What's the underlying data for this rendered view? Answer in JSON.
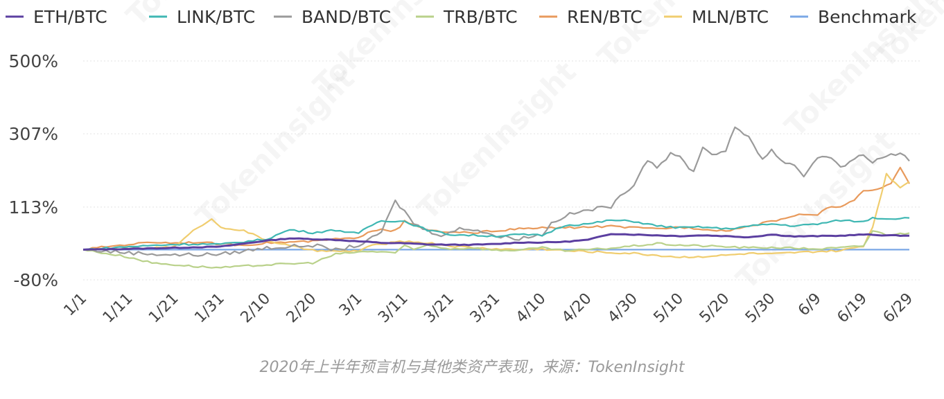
{
  "caption": "2020年上半年预言机与其他类资产表现，来源：TokenInsight",
  "watermark": "TokenInsight",
  "chart_data": {
    "type": "line",
    "title": "",
    "xlabel": "",
    "ylabel": "",
    "ylim": [
      -80,
      500
    ],
    "yticks": [
      {
        "value": 500,
        "label": "500%"
      },
      {
        "value": 307,
        "label": "307%"
      },
      {
        "value": 113,
        "label": "113%"
      },
      {
        "value": -80,
        "label": "-80%"
      }
    ],
    "xticks": [
      "1/1",
      "1/11",
      "1/21",
      "1/31",
      "2/10",
      "2/20",
      "3/1",
      "3/11",
      "3/21",
      "3/31",
      "4/10",
      "4/20",
      "4/30",
      "5/10",
      "5/20",
      "5/30",
      "6/9",
      "6/19",
      "6/29"
    ],
    "grid": true,
    "legend_position": "top",
    "series": [
      {
        "name": "ETH/BTC",
        "color": "#5b3fa0",
        "keys": [
          [
            0,
            0
          ],
          [
            10,
            2
          ],
          [
            20,
            5
          ],
          [
            30,
            8
          ],
          [
            40,
            24
          ],
          [
            45,
            30
          ],
          [
            50,
            28
          ],
          [
            55,
            26
          ],
          [
            60,
            22
          ],
          [
            65,
            18
          ],
          [
            70,
            17
          ],
          [
            75,
            14
          ],
          [
            80,
            13
          ],
          [
            85,
            13
          ],
          [
            90,
            15
          ],
          [
            95,
            19
          ],
          [
            100,
            19
          ],
          [
            105,
            21
          ],
          [
            110,
            26
          ],
          [
            115,
            42
          ],
          [
            120,
            40
          ],
          [
            125,
            38
          ],
          [
            130,
            36
          ],
          [
            135,
            38
          ],
          [
            140,
            36
          ],
          [
            145,
            33
          ],
          [
            150,
            40
          ],
          [
            155,
            35
          ],
          [
            160,
            36
          ],
          [
            165,
            37
          ],
          [
            170,
            40
          ],
          [
            175,
            38
          ],
          [
            180,
            37
          ]
        ]
      },
      {
        "name": "LINK/BTC",
        "color": "#3fb7b3",
        "keys": [
          [
            0,
            0
          ],
          [
            10,
            8
          ],
          [
            20,
            14
          ],
          [
            25,
            15
          ],
          [
            30,
            14
          ],
          [
            40,
            28
          ],
          [
            45,
            53
          ],
          [
            48,
            48
          ],
          [
            50,
            45
          ],
          [
            55,
            52
          ],
          [
            60,
            42
          ],
          [
            62,
            60
          ],
          [
            65,
            77
          ],
          [
            70,
            75
          ],
          [
            75,
            52
          ],
          [
            80,
            40
          ],
          [
            85,
            38
          ],
          [
            90,
            36
          ],
          [
            95,
            40
          ],
          [
            100,
            38
          ],
          [
            105,
            65
          ],
          [
            110,
            68
          ],
          [
            115,
            78
          ],
          [
            120,
            75
          ],
          [
            125,
            63
          ],
          [
            130,
            58
          ],
          [
            135,
            60
          ],
          [
            140,
            55
          ],
          [
            145,
            62
          ],
          [
            150,
            68
          ],
          [
            155,
            63
          ],
          [
            160,
            68
          ],
          [
            165,
            78
          ],
          [
            170,
            74
          ],
          [
            172,
            85
          ],
          [
            175,
            82
          ],
          [
            180,
            84
          ]
        ]
      },
      {
        "name": "BAND/BTC",
        "color": "#9a9a9a",
        "keys": [
          [
            0,
            0
          ],
          [
            10,
            -8
          ],
          [
            20,
            -14
          ],
          [
            30,
            -12
          ],
          [
            40,
            5
          ],
          [
            45,
            8
          ],
          [
            50,
            12
          ],
          [
            55,
            -1
          ],
          [
            60,
            12
          ],
          [
            62,
            22
          ],
          [
            65,
            48
          ],
          [
            68,
            128
          ],
          [
            70,
            102
          ],
          [
            72,
            70
          ],
          [
            75,
            50
          ],
          [
            78,
            40
          ],
          [
            80,
            45
          ],
          [
            82,
            55
          ],
          [
            85,
            55
          ],
          [
            88,
            45
          ],
          [
            90,
            35
          ],
          [
            95,
            30
          ],
          [
            100,
            40
          ],
          [
            102,
            70
          ],
          [
            105,
            90
          ],
          [
            110,
            105
          ],
          [
            115,
            115
          ],
          [
            120,
            175
          ],
          [
            123,
            240
          ],
          [
            125,
            220
          ],
          [
            128,
            252
          ],
          [
            130,
            245
          ],
          [
            133,
            205
          ],
          [
            135,
            275
          ],
          [
            137,
            250
          ],
          [
            140,
            265
          ],
          [
            142,
            320
          ],
          [
            145,
            300
          ],
          [
            148,
            240
          ],
          [
            150,
            265
          ],
          [
            152,
            235
          ],
          [
            155,
            225
          ],
          [
            157,
            195
          ],
          [
            160,
            245
          ],
          [
            162,
            250
          ],
          [
            165,
            220
          ],
          [
            168,
            235
          ],
          [
            170,
            255
          ],
          [
            172,
            230
          ],
          [
            175,
            250
          ],
          [
            178,
            255
          ],
          [
            180,
            235
          ]
        ]
      },
      {
        "name": "TRB/BTC",
        "color": "#b9d18a",
        "keys": [
          [
            0,
            0
          ],
          [
            10,
            -20
          ],
          [
            15,
            -35
          ],
          [
            20,
            -40
          ],
          [
            25,
            -45
          ],
          [
            30,
            -48
          ],
          [
            40,
            -40
          ],
          [
            50,
            -35
          ],
          [
            55,
            -12
          ],
          [
            60,
            -6
          ],
          [
            65,
            -5
          ],
          [
            68,
            -8
          ],
          [
            70,
            10
          ],
          [
            72,
            0
          ],
          [
            75,
            12
          ],
          [
            80,
            2
          ],
          [
            85,
            5
          ],
          [
            90,
            -2
          ],
          [
            95,
            -1
          ],
          [
            100,
            5
          ],
          [
            105,
            -3
          ],
          [
            110,
            0
          ],
          [
            115,
            4
          ],
          [
            120,
            10
          ],
          [
            125,
            16
          ],
          [
            130,
            12
          ],
          [
            135,
            10
          ],
          [
            140,
            8
          ],
          [
            145,
            5
          ],
          [
            150,
            6
          ],
          [
            155,
            4
          ],
          [
            160,
            2
          ],
          [
            165,
            5
          ],
          [
            170,
            10
          ],
          [
            172,
            50
          ],
          [
            175,
            40
          ],
          [
            178,
            42
          ],
          [
            180,
            44
          ]
        ]
      },
      {
        "name": "REN/BTC",
        "color": "#e89a5c",
        "keys": [
          [
            0,
            0
          ],
          [
            5,
            8
          ],
          [
            10,
            14
          ],
          [
            15,
            20
          ],
          [
            20,
            18
          ],
          [
            25,
            20
          ],
          [
            30,
            15
          ],
          [
            35,
            12
          ],
          [
            40,
            18
          ],
          [
            45,
            20
          ],
          [
            50,
            22
          ],
          [
            55,
            28
          ],
          [
            60,
            30
          ],
          [
            62,
            48
          ],
          [
            65,
            55
          ],
          [
            67,
            50
          ],
          [
            69,
            60
          ],
          [
            70,
            75
          ],
          [
            72,
            65
          ],
          [
            75,
            52
          ],
          [
            80,
            45
          ],
          [
            85,
            45
          ],
          [
            90,
            50
          ],
          [
            95,
            55
          ],
          [
            100,
            58
          ],
          [
            105,
            58
          ],
          [
            110,
            60
          ],
          [
            115,
            62
          ],
          [
            120,
            58
          ],
          [
            125,
            55
          ],
          [
            130,
            60
          ],
          [
            135,
            55
          ],
          [
            140,
            50
          ],
          [
            145,
            62
          ],
          [
            150,
            75
          ],
          [
            155,
            90
          ],
          [
            158,
            95
          ],
          [
            160,
            92
          ],
          [
            162,
            110
          ],
          [
            165,
            115
          ],
          [
            168,
            130
          ],
          [
            170,
            155
          ],
          [
            172,
            158
          ],
          [
            174,
            162
          ],
          [
            176,
            175
          ],
          [
            178,
            220
          ],
          [
            180,
            175
          ]
        ]
      },
      {
        "name": "MLN/BTC",
        "color": "#f0cd6f",
        "keys": [
          [
            0,
            0
          ],
          [
            10,
            2
          ],
          [
            15,
            5
          ],
          [
            20,
            8
          ],
          [
            25,
            60
          ],
          [
            28,
            80
          ],
          [
            30,
            60
          ],
          [
            35,
            50
          ],
          [
            40,
            25
          ],
          [
            45,
            10
          ],
          [
            50,
            -2
          ],
          [
            55,
            -5
          ],
          [
            60,
            -3
          ],
          [
            62,
            8
          ],
          [
            65,
            15
          ],
          [
            70,
            22
          ],
          [
            75,
            18
          ],
          [
            80,
            10
          ],
          [
            85,
            5
          ],
          [
            90,
            2
          ],
          [
            95,
            0
          ],
          [
            100,
            2
          ],
          [
            105,
            -3
          ],
          [
            110,
            -5
          ],
          [
            115,
            -8
          ],
          [
            120,
            -10
          ],
          [
            125,
            -15
          ],
          [
            130,
            -20
          ],
          [
            135,
            -18
          ],
          [
            140,
            -15
          ],
          [
            145,
            -10
          ],
          [
            150,
            -12
          ],
          [
            155,
            -8
          ],
          [
            160,
            -5
          ],
          [
            165,
            -3
          ],
          [
            170,
            10
          ],
          [
            172,
            60
          ],
          [
            175,
            200
          ],
          [
            178,
            165
          ],
          [
            180,
            180
          ]
        ]
      },
      {
        "name": "Benchmark",
        "color": "#7aa7e6",
        "keys": [
          [
            0,
            0
          ],
          [
            180,
            0
          ]
        ]
      }
    ]
  }
}
